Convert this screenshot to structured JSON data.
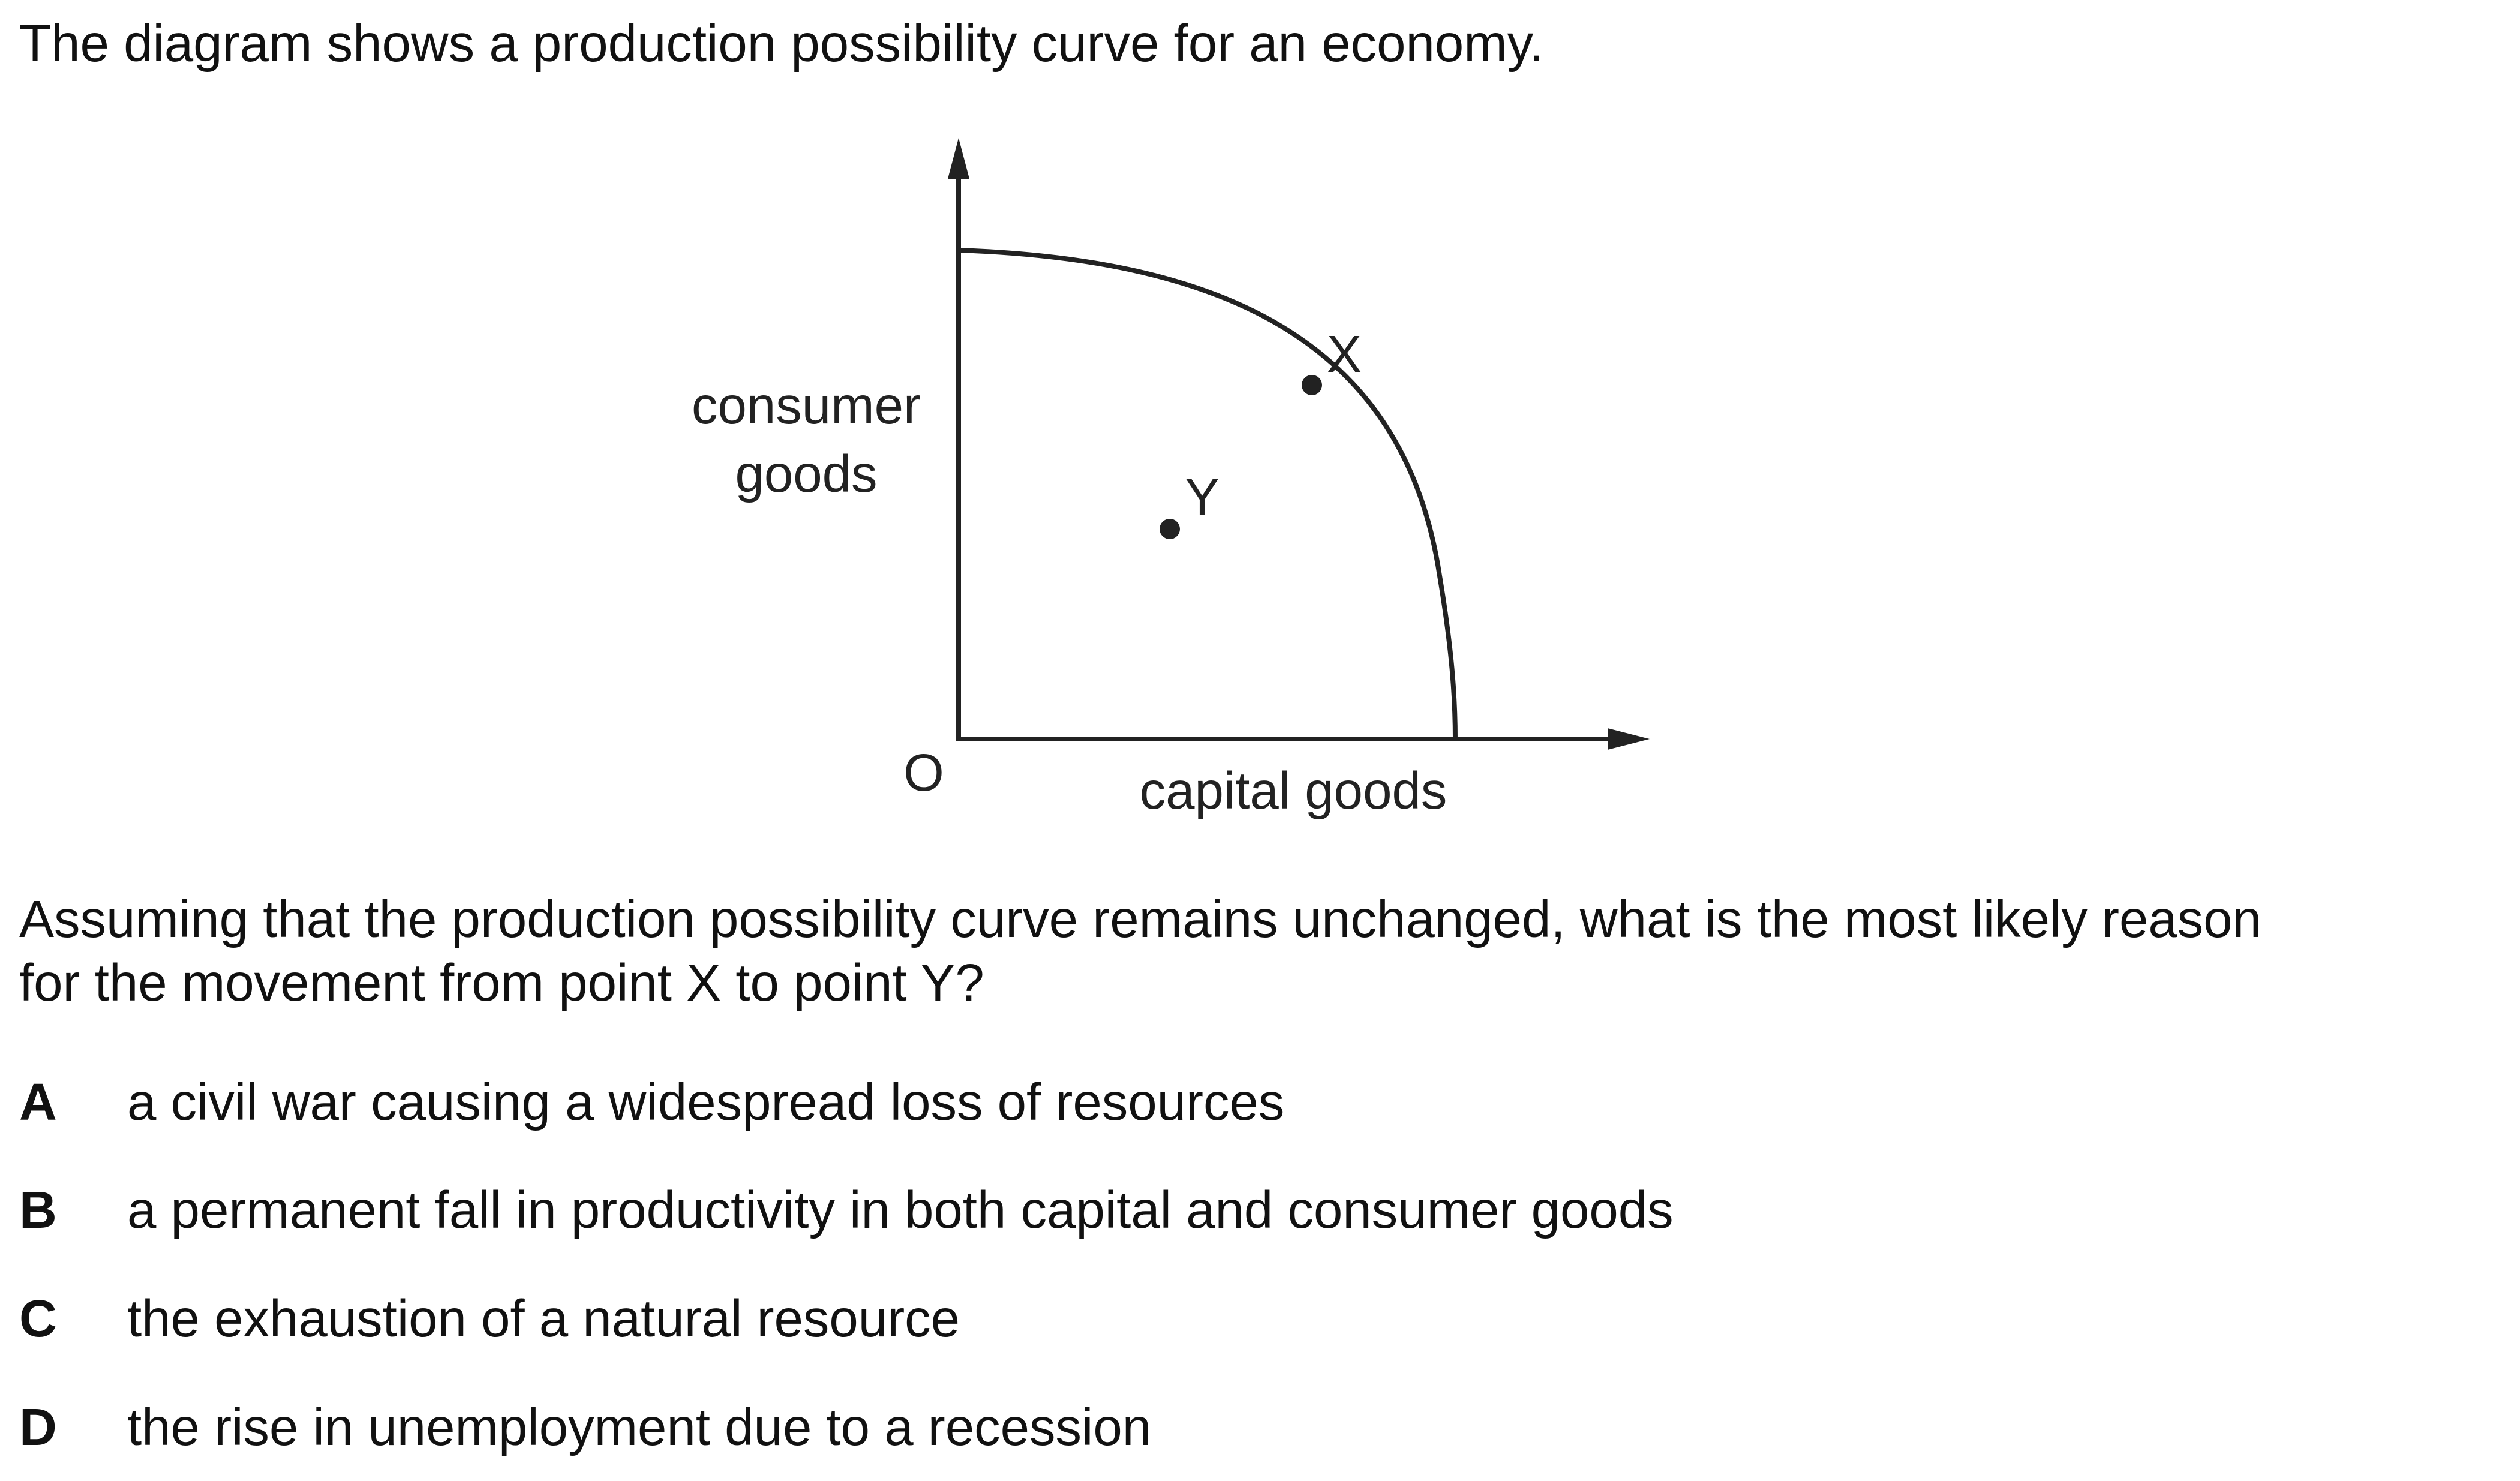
{
  "intro": "The diagram shows a production possibility curve for an economy.",
  "diagram": {
    "y_axis_label_line1": "consumer",
    "y_axis_label_line2": "goods",
    "x_axis_label": "capital goods",
    "origin_label": "O",
    "point_x_label": "X",
    "point_y_label": "Y"
  },
  "question": {
    "line1": "Assuming that the production possibility curve remains unchanged, what is the most likely reason",
    "line2": "for the movement from point X to point Y?"
  },
  "options": [
    {
      "letter": "A",
      "text": "a civil war causing a widespread loss of resources"
    },
    {
      "letter": "B",
      "text": "a permanent fall in productivity in both capital and consumer goods"
    },
    {
      "letter": "C",
      "text": "the exhaustion of a natural resource"
    },
    {
      "letter": "D",
      "text": "the rise in unemployment due to a recession"
    }
  ]
}
